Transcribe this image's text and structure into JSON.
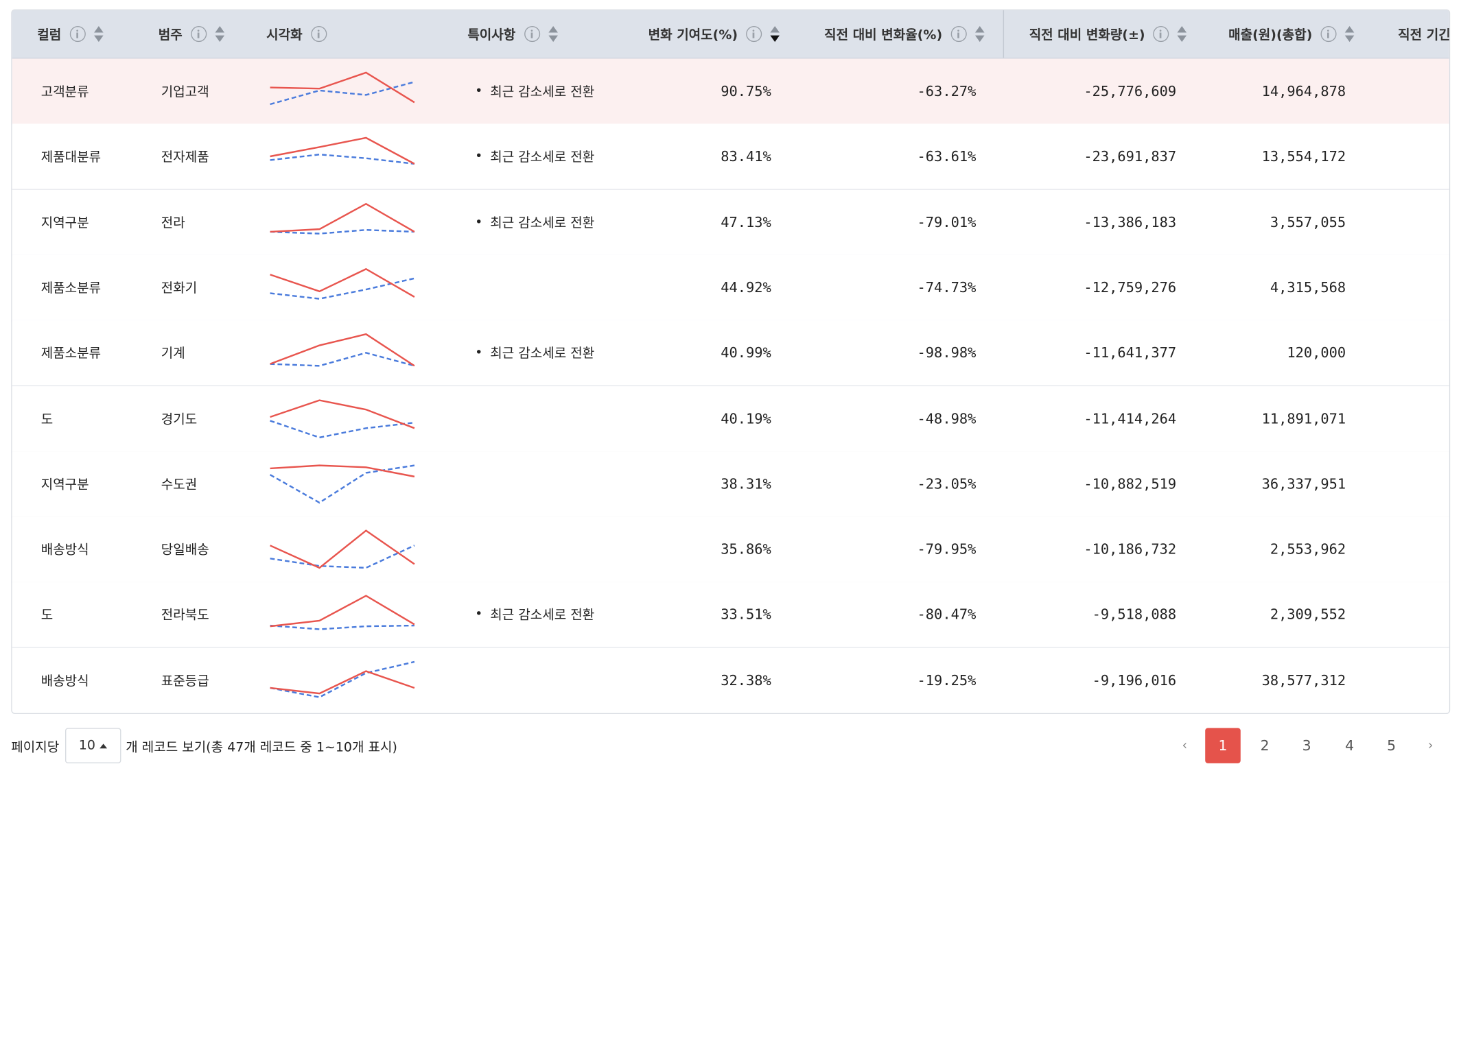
{
  "columns": [
    {
      "label": "컬럼"
    },
    {
      "label": "범주"
    },
    {
      "label": "시각화"
    },
    {
      "label": "특이사항"
    },
    {
      "label": "변화 기여도(%)"
    },
    {
      "label": "직전 대비 변화율(%)"
    },
    {
      "label": "직전 대비 변화량(±)"
    },
    {
      "label": "매출(원)(총합)"
    },
    {
      "label": "직전 기긴"
    }
  ],
  "rows": [
    {
      "col": "고객분류",
      "cat": "기업고객",
      "note": "최근 감소세로 전환",
      "contrib": "90.75%",
      "rate": "-63.27%",
      "delta": "-25,776,609",
      "sales": "14,964,878",
      "highlight": true,
      "red": [
        0.4,
        0.43,
        0.0,
        0.8
      ],
      "blue": [
        0.85,
        0.48,
        0.6,
        0.25
      ]
    },
    {
      "col": "제품대분류",
      "cat": "전자제품",
      "note": "최근 감소세로 전환",
      "contrib": "83.41%",
      "rate": "-63.61%",
      "delta": "-23,691,837",
      "sales": "13,554,172",
      "highlight": false,
      "red": [
        0.5,
        0.25,
        0.0,
        0.7
      ],
      "blue": [
        0.6,
        0.45,
        0.55,
        0.7
      ]
    },
    {
      "col": "지역구분",
      "cat": "전라",
      "note": "최근 감소세로 전환",
      "contrib": "47.13%",
      "rate": "-79.01%",
      "delta": "-13,386,183",
      "sales": "3,557,055",
      "highlight": false,
      "red": [
        0.75,
        0.68,
        0.0,
        0.75
      ],
      "blue": [
        0.75,
        0.8,
        0.7,
        0.75
      ]
    },
    {
      "col": "제품소분류",
      "cat": "전화기",
      "note": "",
      "contrib": "44.92%",
      "rate": "-74.73%",
      "delta": "-12,759,276",
      "sales": "4,315,568",
      "highlight": false,
      "red": [
        0.15,
        0.6,
        0.0,
        0.75
      ],
      "blue": [
        0.65,
        0.8,
        0.55,
        0.25
      ]
    },
    {
      "col": "제품소분류",
      "cat": "기계",
      "note": "최근 감소세로 전환",
      "contrib": "40.99%",
      "rate": "-98.98%",
      "delta": "-11,641,377",
      "sales": "120,000",
      "highlight": false,
      "red": [
        0.8,
        0.3,
        0.0,
        0.85
      ],
      "blue": [
        0.8,
        0.85,
        0.5,
        0.85
      ]
    },
    {
      "col": "도",
      "cat": "경기도",
      "note": "",
      "contrib": "40.19%",
      "rate": "-48.98%",
      "delta": "-11,414,264",
      "sales": "11,891,071",
      "highlight": false,
      "red": [
        0.45,
        0.0,
        0.25,
        0.75
      ],
      "blue": [
        0.55,
        1.0,
        0.75,
        0.6
      ]
    },
    {
      "col": "지역구분",
      "cat": "수도권",
      "note": "",
      "contrib": "38.31%",
      "rate": "-23.05%",
      "delta": "-10,882,519",
      "sales": "36,337,951",
      "highlight": false,
      "red": [
        0.08,
        0.0,
        0.05,
        0.3
      ],
      "blue": [
        0.25,
        1.0,
        0.2,
        0.0
      ]
    },
    {
      "col": "배송방식",
      "cat": "당일배송",
      "note": "",
      "contrib": "35.86%",
      "rate": "-79.95%",
      "delta": "-10,186,732",
      "sales": "2,553,962",
      "highlight": false,
      "red": [
        0.4,
        1.0,
        0.0,
        0.9
      ],
      "blue": [
        0.75,
        0.95,
        1.0,
        0.4
      ]
    },
    {
      "col": "도",
      "cat": "전라북도",
      "note": "최근 감소세로 전환",
      "contrib": "33.51%",
      "rate": "-80.47%",
      "delta": "-9,518,088",
      "sales": "2,309,552",
      "highlight": false,
      "red": [
        0.82,
        0.67,
        0.0,
        0.77
      ],
      "blue": [
        0.8,
        0.9,
        0.82,
        0.8
      ]
    },
    {
      "col": "배송방식",
      "cat": "표준등급",
      "note": "",
      "contrib": "32.38%",
      "rate": "-19.25%",
      "delta": "-9,196,016",
      "sales": "38,577,312",
      "highlight": false,
      "red": [
        0.7,
        0.85,
        0.25,
        0.7
      ],
      "blue": [
        0.7,
        0.95,
        0.3,
        0.0
      ]
    }
  ],
  "footer": {
    "per_page_label": "페이지당",
    "per_page_value": "10",
    "records_info": "개 레코드 보기(총 47개 레코드 중 1~10개 표시)",
    "pages": [
      "1",
      "2",
      "3",
      "4",
      "5"
    ],
    "active_page": "1",
    "prev": "‹",
    "next": "›"
  },
  "colors": {
    "series_current": "#e8554e",
    "series_previous": "#4a7bdc",
    "active_page_bg": "#e5534b",
    "header_bg": "#dde2ea",
    "highlight_row_bg": "#fcf0f0"
  }
}
